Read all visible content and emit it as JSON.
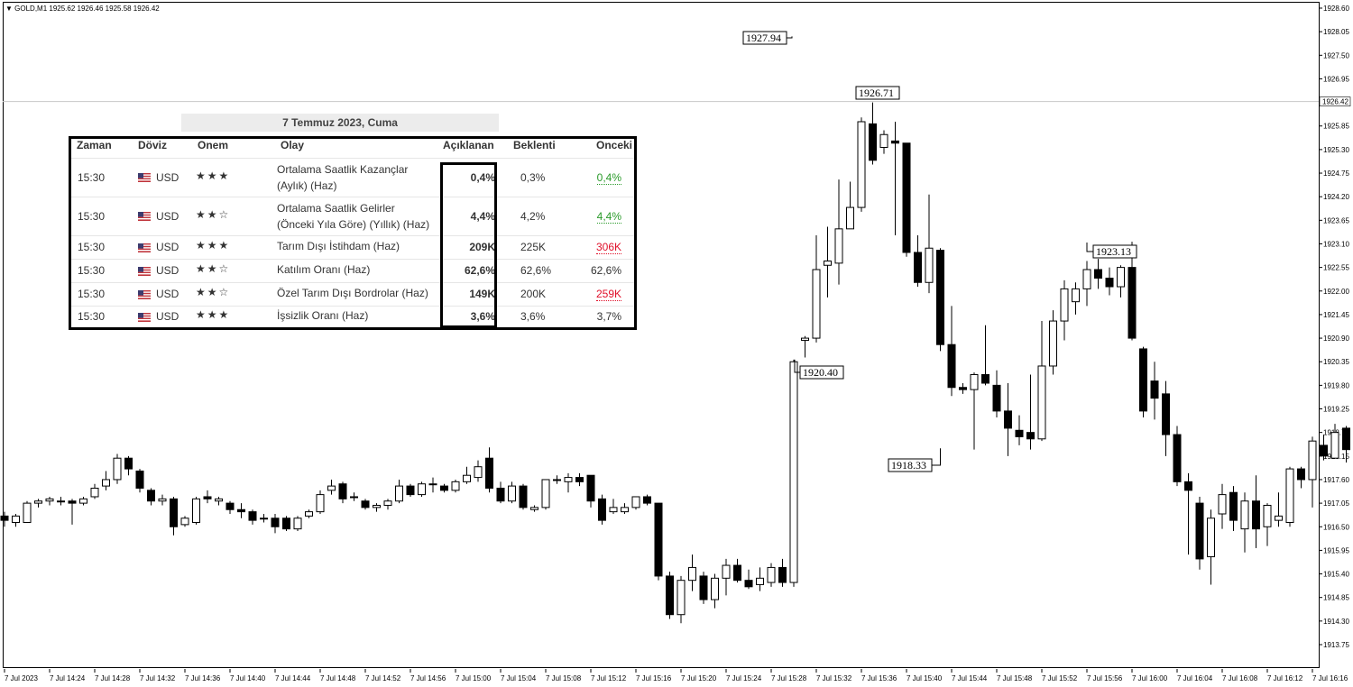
{
  "chart_data": {
    "type": "candlestick",
    "symbol_line": "GOLD,M1  1925.62 1926.46 1925.58 1926.42",
    "current_price": "1926.42",
    "ylim": [
      1913.75,
      1929.0
    ],
    "y_ticks": [
      "1928.60",
      "1928.05",
      "1927.50",
      "1926.95",
      "1926.40",
      "1925.85",
      "1925.30",
      "1924.75",
      "1924.20",
      "1923.65",
      "1923.10",
      "1922.55",
      "1922.00",
      "1921.45",
      "1920.90",
      "1920.35",
      "1919.80",
      "1919.25",
      "1918.70",
      "1918.15",
      "1917.60",
      "1917.05",
      "1916.50",
      "1915.95",
      "1915.40",
      "1914.85",
      "1914.30",
      "1913.75"
    ],
    "x_ticks": [
      "7 Jul 2023",
      "7 Jul 14:24",
      "7 Jul 14:28",
      "7 Jul 14:32",
      "7 Jul 14:36",
      "7 Jul 14:40",
      "7 Jul 14:44",
      "7 Jul 14:48",
      "7 Jul 14:52",
      "7 Jul 14:56",
      "7 Jul 15:00",
      "7 Jul 15:04",
      "7 Jul 15:08",
      "7 Jul 15:12",
      "7 Jul 15:16",
      "7 Jul 15:20",
      "7 Jul 15:24",
      "7 Jul 15:28",
      "7 Jul 15:32",
      "7 Jul 15:36",
      "7 Jul 15:40",
      "7 Jul 15:44",
      "7 Jul 15:48",
      "7 Jul 15:52",
      "7 Jul 15:56",
      "7 Jul 16:00",
      "7 Jul 16:04",
      "7 Jul 16:08",
      "7 Jul 16:12",
      "7 Jul 16:16"
    ],
    "annotations": [
      {
        "label": "1927.94",
        "price": 1927.94,
        "bar": 70
      },
      {
        "label": "1926.71",
        "price": 1926.71,
        "bar": 76
      },
      {
        "label": "1923.13",
        "price": 1923.13,
        "bar": 96
      },
      {
        "label": "1920.40",
        "price": 1920.4,
        "bar": 70
      },
      {
        "label": "1918.33",
        "price": 1918.33,
        "bar": 83
      }
    ],
    "candles": [
      [
        1916.75,
        1916.85,
        1916.5,
        1916.65
      ],
      [
        1916.6,
        1916.8,
        1916.5,
        1916.75
      ],
      [
        1916.6,
        1917.1,
        1916.6,
        1917.05
      ],
      [
        1917.05,
        1917.15,
        1916.95,
        1917.1
      ],
      [
        1917.1,
        1917.2,
        1917.0,
        1917.15
      ],
      [
        1917.1,
        1917.2,
        1917.0,
        1917.1
      ],
      [
        1917.1,
        1917.15,
        1916.55,
        1917.05
      ],
      [
        1917.05,
        1917.2,
        1917.0,
        1917.15
      ],
      [
        1917.2,
        1917.5,
        1917.15,
        1917.4
      ],
      [
        1917.45,
        1917.8,
        1917.35,
        1917.6
      ],
      [
        1917.6,
        1918.2,
        1917.5,
        1918.1
      ],
      [
        1918.1,
        1918.15,
        1917.7,
        1917.85
      ],
      [
        1917.8,
        1917.85,
        1917.3,
        1917.4
      ],
      [
        1917.35,
        1917.4,
        1917.0,
        1917.1
      ],
      [
        1917.1,
        1917.25,
        1917.0,
        1917.15
      ],
      [
        1917.15,
        1917.2,
        1916.3,
        1916.5
      ],
      [
        1916.55,
        1916.75,
        1916.5,
        1916.7
      ],
      [
        1916.6,
        1917.2,
        1916.55,
        1917.15
      ],
      [
        1917.2,
        1917.35,
        1917.05,
        1917.15
      ],
      [
        1917.1,
        1917.2,
        1917.0,
        1917.15
      ],
      [
        1917.05,
        1917.1,
        1916.8,
        1916.9
      ],
      [
        1916.9,
        1917.05,
        1916.7,
        1916.85
      ],
      [
        1916.85,
        1916.9,
        1916.55,
        1916.65
      ],
      [
        1916.7,
        1916.8,
        1916.6,
        1916.7
      ],
      [
        1916.7,
        1916.8,
        1916.35,
        1916.5
      ],
      [
        1916.7,
        1916.75,
        1916.4,
        1916.45
      ],
      [
        1916.45,
        1916.75,
        1916.4,
        1916.7
      ],
      [
        1916.75,
        1916.9,
        1916.7,
        1916.85
      ],
      [
        1916.85,
        1917.35,
        1916.8,
        1917.25
      ],
      [
        1917.35,
        1917.6,
        1917.25,
        1917.45
      ],
      [
        1917.5,
        1917.55,
        1917.05,
        1917.15
      ],
      [
        1917.2,
        1917.3,
        1917.1,
        1917.2
      ],
      [
        1917.1,
        1917.15,
        1916.9,
        1916.95
      ],
      [
        1916.95,
        1917.05,
        1916.85,
        1917.0
      ],
      [
        1917.0,
        1917.15,
        1916.9,
        1917.1
      ],
      [
        1917.1,
        1917.6,
        1917.05,
        1917.45
      ],
      [
        1917.45,
        1917.5,
        1917.2,
        1917.25
      ],
      [
        1917.25,
        1917.55,
        1917.2,
        1917.5
      ],
      [
        1917.5,
        1917.65,
        1917.3,
        1917.5
      ],
      [
        1917.45,
        1917.5,
        1917.3,
        1917.35
      ],
      [
        1917.35,
        1917.6,
        1917.3,
        1917.55
      ],
      [
        1917.55,
        1917.9,
        1917.5,
        1917.7
      ],
      [
        1917.65,
        1918.05,
        1917.55,
        1917.9
      ],
      [
        1918.1,
        1918.35,
        1917.3,
        1917.4
      ],
      [
        1917.4,
        1917.55,
        1917.05,
        1917.1
      ],
      [
        1917.1,
        1917.55,
        1917.05,
        1917.45
      ],
      [
        1917.45,
        1917.5,
        1916.9,
        1916.95
      ],
      [
        1916.9,
        1917.0,
        1916.85,
        1916.95
      ],
      [
        1916.95,
        1917.6,
        1916.9,
        1917.6
      ],
      [
        1917.6,
        1917.7,
        1917.5,
        1917.6
      ],
      [
        1917.55,
        1917.75,
        1917.3,
        1917.65
      ],
      [
        1917.65,
        1917.75,
        1917.45,
        1917.55
      ],
      [
        1917.7,
        1917.7,
        1916.95,
        1917.1
      ],
      [
        1917.15,
        1917.25,
        1916.55,
        1916.65
      ],
      [
        1916.85,
        1917.15,
        1916.8,
        1916.95
      ],
      [
        1916.85,
        1917.05,
        1916.8,
        1916.95
      ],
      [
        1916.95,
        1917.2,
        1916.9,
        1917.2
      ],
      [
        1917.2,
        1917.25,
        1917.0,
        1917.05
      ],
      [
        1917.05,
        1917.05,
        1915.25,
        1915.35
      ],
      [
        1915.35,
        1915.45,
        1914.35,
        1914.45
      ],
      [
        1914.45,
        1915.35,
        1914.25,
        1915.25
      ],
      [
        1915.25,
        1915.85,
        1915.0,
        1915.55
      ],
      [
        1915.35,
        1915.45,
        1914.7,
        1914.8
      ],
      [
        1914.8,
        1915.4,
        1914.6,
        1915.3
      ],
      [
        1915.3,
        1915.75,
        1914.9,
        1915.6
      ],
      [
        1915.6,
        1915.75,
        1915.2,
        1915.25
      ],
      [
        1915.25,
        1915.5,
        1915.05,
        1915.1
      ],
      [
        1915.15,
        1915.55,
        1915.0,
        1915.3
      ],
      [
        1915.2,
        1915.65,
        1915.1,
        1915.55
      ],
      [
        1915.55,
        1915.75,
        1915.1,
        1915.2
      ],
      [
        1915.2,
        1920.4,
        1915.1,
        1920.35
      ],
      [
        1920.85,
        1920.95,
        1920.45,
        1920.9
      ],
      [
        1920.9,
        1923.3,
        1920.8,
        1922.5
      ],
      [
        1922.6,
        1923.5,
        1921.85,
        1922.7
      ],
      [
        1922.65,
        1924.6,
        1922.15,
        1923.45
      ],
      [
        1923.45,
        1924.55,
        1923.45,
        1923.95
      ],
      [
        1923.95,
        1926.05,
        1923.85,
        1925.95
      ],
      [
        1925.9,
        1926.4,
        1924.95,
        1925.05
      ],
      [
        1925.35,
        1925.75,
        1925.2,
        1925.65
      ],
      [
        1925.5,
        1925.95,
        1923.3,
        1925.45
      ],
      [
        1925.45,
        1925.45,
        1922.8,
        1922.9
      ],
      [
        1922.9,
        1923.3,
        1922.1,
        1922.2
      ],
      [
        1922.2,
        1924.25,
        1921.95,
        1923.0
      ],
      [
        1922.95,
        1923.0,
        1920.6,
        1920.75
      ],
      [
        1920.75,
        1921.65,
        1919.55,
        1919.75
      ],
      [
        1919.75,
        1919.85,
        1919.6,
        1919.7
      ],
      [
        1919.7,
        1920.1,
        1918.3,
        1920.05
      ],
      [
        1920.05,
        1921.2,
        1919.8,
        1919.85
      ],
      [
        1919.8,
        1920.15,
        1919.05,
        1919.2
      ],
      [
        1919.2,
        1919.85,
        1918.15,
        1918.8
      ],
      [
        1918.75,
        1919.1,
        1918.4,
        1918.6
      ],
      [
        1918.7,
        1920.05,
        1918.3,
        1918.55
      ],
      [
        1918.55,
        1921.3,
        1918.5,
        1920.25
      ],
      [
        1920.25,
        1921.55,
        1920.05,
        1921.3
      ],
      [
        1921.3,
        1922.25,
        1920.85,
        1922.05
      ],
      [
        1921.75,
        1922.2,
        1921.45,
        1922.05
      ],
      [
        1922.05,
        1922.7,
        1921.65,
        1922.5
      ],
      [
        1922.5,
        1922.75,
        1922.05,
        1922.3
      ],
      [
        1922.3,
        1922.55,
        1921.9,
        1922.1
      ],
      [
        1922.1,
        1922.6,
        1921.85,
        1922.55
      ],
      [
        1922.55,
        1923.15,
        1920.85,
        1920.9
      ],
      [
        1920.65,
        1920.7,
        1919.05,
        1919.2
      ],
      [
        1919.9,
        1920.35,
        1919.0,
        1919.5
      ],
      [
        1919.6,
        1919.9,
        1918.15,
        1918.65
      ],
      [
        1918.65,
        1918.85,
        1917.45,
        1917.55
      ],
      [
        1917.55,
        1917.75,
        1915.85,
        1917.35
      ],
      [
        1917.05,
        1917.2,
        1915.5,
        1915.75
      ],
      [
        1915.8,
        1916.9,
        1915.15,
        1916.7
      ],
      [
        1916.8,
        1917.5,
        1916.45,
        1917.25
      ],
      [
        1917.3,
        1917.45,
        1916.4,
        1916.65
      ],
      [
        1916.45,
        1917.3,
        1915.9,
        1917.1
      ],
      [
        1917.1,
        1917.7,
        1916.0,
        1916.45
      ],
      [
        1916.5,
        1917.05,
        1916.05,
        1917.0
      ],
      [
        1916.65,
        1917.3,
        1916.5,
        1916.75
      ],
      [
        1916.6,
        1917.9,
        1916.5,
        1917.85
      ],
      [
        1917.85,
        1917.9,
        1917.4,
        1917.6
      ],
      [
        1917.6,
        1918.6,
        1916.95,
        1918.5
      ],
      [
        1918.4,
        1918.65,
        1918.05,
        1918.15
      ],
      [
        1918.1,
        1918.9,
        1918.1,
        1918.7
      ],
      [
        1918.8,
        1918.85,
        1918.0,
        1918.3
      ],
      [
        1918.5,
        1918.85,
        1918.35,
        1918.75
      ],
      [
        1918.6,
        1919.3,
        1918.5,
        1919.25
      ]
    ]
  },
  "calendar": {
    "title": "7 Temmuz 2023, Cuma",
    "headers": {
      "time": "Zaman",
      "currency": "Döviz",
      "importance": "Onem",
      "event": "Olay",
      "actual": "Açıklanan",
      "forecast": "Beklenti",
      "previous": "Onceki"
    },
    "rows": [
      {
        "time": "15:30",
        "currency": "USD",
        "stars": "★★★",
        "event1": "Ortalama Saatlik Kazançlar",
        "event2": "(Aylık) (Haz)",
        "actual": "0,4%",
        "actual_color": "green",
        "forecast": "0,3%",
        "previous": "0,4%",
        "previous_style": "ul-green"
      },
      {
        "time": "15:30",
        "currency": "USD",
        "stars": "★★☆",
        "event1": "Ortalama Saatlik Gelirler",
        "event2": "(Önceki Yıla Göre) (Yıllık) (Haz)",
        "actual": "4,4%",
        "actual_color": "green",
        "forecast": "4,2%",
        "previous": "4,4%",
        "previous_style": "ul-green"
      },
      {
        "time": "15:30",
        "currency": "USD",
        "stars": "★★★",
        "event1": "Tarım Dışı İstihdam (Haz)",
        "event2": "",
        "actual": "209K",
        "actual_color": "red",
        "forecast": "225K",
        "previous": "306K",
        "previous_style": "ul-red"
      },
      {
        "time": "15:30",
        "currency": "USD",
        "stars": "★★☆",
        "event1": "Katılım Oranı (Haz)",
        "event2": "",
        "actual": "62,6%",
        "actual_color": "black",
        "forecast": "62,6%",
        "previous": "62,6%",
        "previous_style": "plain"
      },
      {
        "time": "15:30",
        "currency": "USD",
        "stars": "★★☆",
        "event1": "Özel Tarım Dışı Bordrolar (Haz)",
        "event2": "",
        "actual": "149K",
        "actual_color": "red",
        "forecast": "200K",
        "previous": "259K",
        "previous_style": "ul-red"
      },
      {
        "time": "15:30",
        "currency": "USD",
        "stars": "★★★",
        "event1": "İşsizlik Oranı (Haz)",
        "event2": "",
        "actual": "3,6%",
        "actual_color": "black",
        "forecast": "3,6%",
        "previous": "3,7%",
        "previous_style": "plain"
      }
    ]
  }
}
